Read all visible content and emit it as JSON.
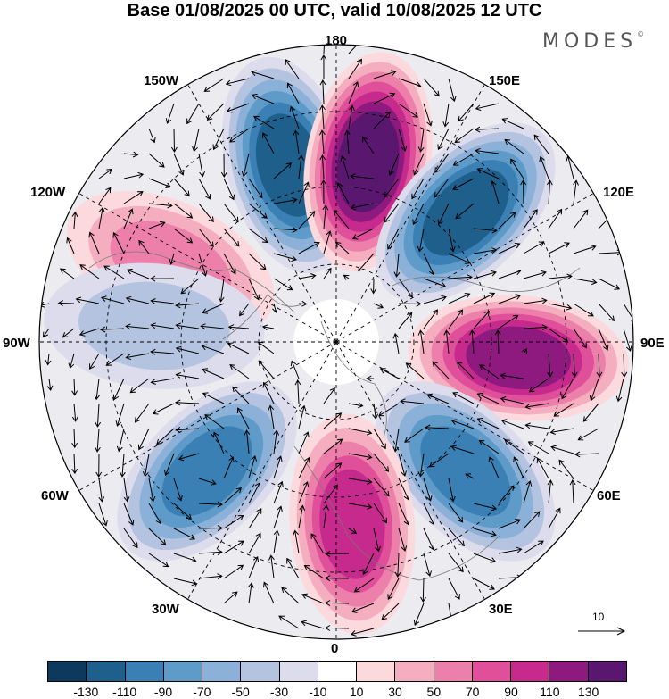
{
  "title": "Base 01/08/2025 00 UTC, valid 10/08/2025 12 UTC",
  "logo": "MODES",
  "logo_mark": "©",
  "longitude_labels": {
    "top": "180",
    "top_left": "150W",
    "top_right": "150E",
    "upper_left": "120W",
    "upper_right": "120E",
    "left": "90W",
    "right": "90E",
    "lower_left": "60W",
    "lower_right": "60E",
    "bottom_left": "30W",
    "bottom_right": "30E",
    "bottom": "0"
  },
  "vector_legend": {
    "value": "10"
  },
  "colorbar": {
    "colors": [
      "#0d3a5c",
      "#1f5f8b",
      "#3a80b5",
      "#5f9bc8",
      "#8bb1d8",
      "#b3c3e0",
      "#dcdcec",
      "#ffffff",
      "#fbd9dd",
      "#f4aec0",
      "#ec80aa",
      "#e0509a",
      "#c52a8c",
      "#8e1a80",
      "#5a176f"
    ],
    "ticks": [
      "-130",
      "-110",
      "-90",
      "-70",
      "-50",
      "-30",
      "-10",
      "10",
      "30",
      "50",
      "70",
      "90",
      "110",
      "130"
    ]
  },
  "anomaly_centers": [
    {
      "sign": "negative",
      "magnitude": 120,
      "lon_sector": "165W"
    },
    {
      "sign": "positive",
      "magnitude": 130,
      "lon_sector": "170E"
    },
    {
      "sign": "negative",
      "magnitude": 110,
      "lon_sector": "135E"
    },
    {
      "sign": "positive",
      "magnitude": 60,
      "lon_sector": "115W"
    },
    {
      "sign": "negative",
      "magnitude": 40,
      "lon_sector": "95W"
    },
    {
      "sign": "positive",
      "magnitude": 125,
      "lon_sector": "85E"
    },
    {
      "sign": "negative",
      "magnitude": 100,
      "lon_sector": "45E"
    },
    {
      "sign": "positive",
      "magnitude": 100,
      "lon_sector": "5E"
    },
    {
      "sign": "negative",
      "magnitude": 100,
      "lon_sector": "45W"
    }
  ]
}
